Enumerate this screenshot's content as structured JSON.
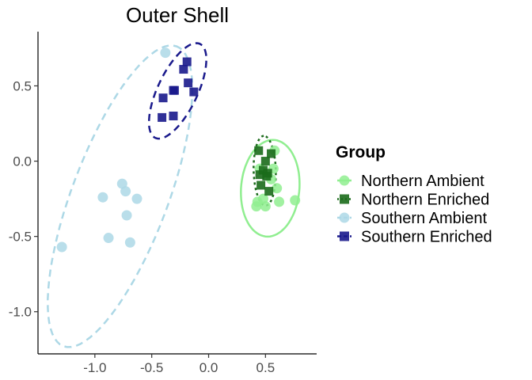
{
  "chart_data": {
    "type": "scatter",
    "title": "Outer Shell",
    "xlabel": "",
    "ylabel": "",
    "xlim": [
      -1.5,
      0.95
    ],
    "ylim": [
      -1.28,
      0.86
    ],
    "x_ticks": [
      -1.0,
      -0.5,
      0.0,
      0.5
    ],
    "x_tick_labels": [
      "-1.0",
      "-0.5",
      "0.0",
      "0.5"
    ],
    "y_ticks": [
      -1.0,
      -0.5,
      0.0,
      0.5
    ],
    "y_tick_labels": [
      "-1.0",
      "-0.5",
      "0.0",
      "0.5"
    ],
    "grid": false,
    "legend": {
      "title": "Group",
      "placement": "right"
    },
    "series": [
      {
        "name": "Northern Ambient",
        "color": "#90EE90",
        "marker": "circle",
        "ellipse_linetype": "solid",
        "points": [
          [
            0.42,
            -0.3
          ],
          [
            0.43,
            -0.27
          ],
          [
            0.45,
            -0.05
          ],
          [
            0.48,
            -0.25
          ],
          [
            0.5,
            -0.3
          ],
          [
            0.55,
            -0.12
          ],
          [
            0.57,
            -0.05
          ],
          [
            0.58,
            0.07
          ],
          [
            0.6,
            -0.18
          ],
          [
            0.62,
            -0.27
          ],
          [
            0.76,
            -0.26
          ]
        ]
      },
      {
        "name": "Northern Enriched",
        "color": "#1B6B1B",
        "marker": "square",
        "ellipse_linetype": "dotted",
        "points": [
          [
            0.44,
            0.07
          ],
          [
            0.45,
            -0.09
          ],
          [
            0.46,
            -0.16
          ],
          [
            0.48,
            -0.06
          ],
          [
            0.5,
            0.0
          ],
          [
            0.51,
            -0.1
          ],
          [
            0.52,
            -0.08
          ],
          [
            0.53,
            -0.2
          ],
          [
            0.55,
            0.05
          ]
        ]
      },
      {
        "name": "Southern Ambient",
        "color": "#ADD8E6",
        "marker": "circle",
        "ellipse_linetype": "dashed",
        "points": [
          [
            -1.29,
            -0.57
          ],
          [
            -0.93,
            -0.24
          ],
          [
            -0.88,
            -0.51
          ],
          [
            -0.76,
            -0.15
          ],
          [
            -0.73,
            -0.2
          ],
          [
            -0.72,
            -0.36
          ],
          [
            -0.69,
            -0.54
          ],
          [
            -0.63,
            -0.25
          ],
          [
            -0.38,
            0.72
          ]
        ]
      },
      {
        "name": "Southern Enriched",
        "color": "#1A1A8C",
        "marker": "square",
        "ellipse_linetype": "dashed",
        "points": [
          [
            -0.41,
            0.29
          ],
          [
            -0.4,
            0.42
          ],
          [
            -0.31,
            0.3
          ],
          [
            -0.31,
            0.47
          ],
          [
            -0.3,
            0.47
          ],
          [
            -0.22,
            0.61
          ],
          [
            -0.19,
            0.66
          ],
          [
            -0.18,
            0.52
          ],
          [
            -0.13,
            0.46
          ]
        ]
      }
    ]
  }
}
